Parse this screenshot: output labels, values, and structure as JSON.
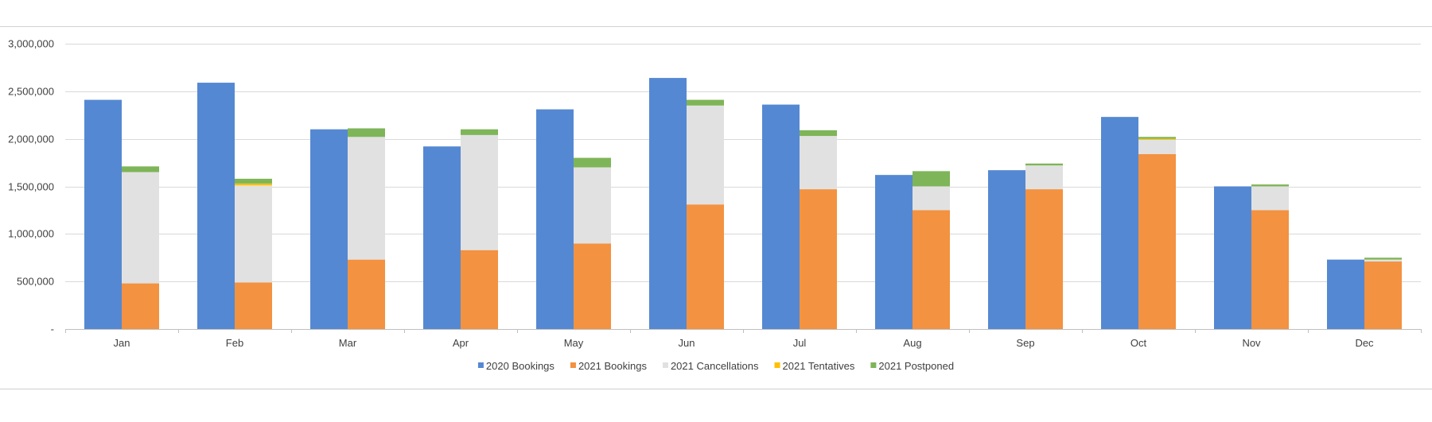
{
  "colors": {
    "2020 Bookings": "#5588D2",
    "2021 Bookings": "#F39240",
    "2021 Cancellations": "#E1E1E1",
    "2021 Tentatives": "#FFC000",
    "2021 Postponed": "#7EB558",
    "gridline": "#D9D9D9",
    "axis": "#BFBFBF",
    "frame": "#D0D0D0"
  },
  "chart_data": {
    "type": "bar",
    "subtype": "clustered-and-stacked",
    "title": "",
    "xlabel": "",
    "ylabel": "",
    "ylim": [
      0,
      3000000
    ],
    "yticks": [
      0,
      500000,
      1000000,
      1500000,
      2000000,
      2500000,
      3000000
    ],
    "ytick_labels": [
      "-",
      "500,000",
      "1,000,000",
      "1,500,000",
      "2,000,000",
      "2,500,000",
      "3,000,000"
    ],
    "grid": true,
    "legend_position": "bottom",
    "categories": [
      "Jan",
      "Feb",
      "Mar",
      "Apr",
      "May",
      "Jun",
      "Jul",
      "Aug",
      "Sep",
      "Oct",
      "Nov",
      "Dec"
    ],
    "series": [
      {
        "name": "2020 Bookings",
        "stack": "2020",
        "values": [
          2410000,
          2590000,
          2100000,
          1920000,
          2310000,
          2640000,
          2360000,
          1620000,
          1670000,
          2230000,
          1500000,
          730000
        ]
      },
      {
        "name": "2021 Bookings",
        "stack": "2021",
        "values": [
          480000,
          490000,
          730000,
          830000,
          900000,
          1310000,
          1470000,
          1250000,
          1470000,
          1840000,
          1250000,
          710000
        ]
      },
      {
        "name": "2021 Cancellations",
        "stack": "2021",
        "values": [
          1170000,
          1020000,
          1290000,
          1210000,
          800000,
          1040000,
          560000,
          250000,
          250000,
          150000,
          250000,
          20000
        ]
      },
      {
        "name": "2021 Tentatives",
        "stack": "2021",
        "values": [
          0,
          20000,
          0,
          0,
          0,
          0,
          0,
          0,
          0,
          10000,
          0,
          0
        ]
      },
      {
        "name": "2021 Postponed",
        "stack": "2021",
        "values": [
          60000,
          50000,
          90000,
          60000,
          100000,
          60000,
          60000,
          160000,
          20000,
          20000,
          20000,
          20000
        ]
      }
    ]
  }
}
